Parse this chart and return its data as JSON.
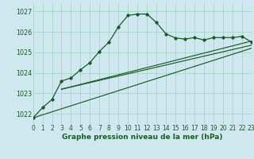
{
  "title": "Graphe pression niveau de la mer (hPa)",
  "background_color": "#cfe8ef",
  "grid_color": "#a8d5c8",
  "line_color": "#1a5c28",
  "xlim": [
    0,
    23
  ],
  "ylim": [
    1021.5,
    1027.4
  ],
  "yticks": [
    1022,
    1023,
    1024,
    1025,
    1026,
    1027
  ],
  "xticks": [
    0,
    1,
    2,
    3,
    4,
    5,
    6,
    7,
    8,
    9,
    10,
    11,
    12,
    13,
    14,
    15,
    16,
    17,
    18,
    19,
    20,
    21,
    22,
    23
  ],
  "main_series": [
    [
      0,
      1021.8
    ],
    [
      1,
      1022.3
    ],
    [
      2,
      1022.7
    ],
    [
      3,
      1023.6
    ],
    [
      4,
      1023.75
    ],
    [
      5,
      1024.15
    ],
    [
      6,
      1024.5
    ],
    [
      7,
      1025.05
    ],
    [
      8,
      1025.5
    ],
    [
      9,
      1026.25
    ],
    [
      10,
      1026.8
    ],
    [
      11,
      1026.87
    ],
    [
      12,
      1026.87
    ],
    [
      13,
      1026.45
    ],
    [
      14,
      1025.9
    ],
    [
      15,
      1025.7
    ],
    [
      16,
      1025.65
    ],
    [
      17,
      1025.72
    ],
    [
      18,
      1025.6
    ],
    [
      19,
      1025.72
    ],
    [
      20,
      1025.72
    ],
    [
      21,
      1025.72
    ],
    [
      22,
      1025.78
    ],
    [
      23,
      1025.5
    ]
  ],
  "line1": [
    [
      0,
      1021.8
    ],
    [
      23,
      1025.2
    ]
  ],
  "line2": [
    [
      3,
      1023.2
    ],
    [
      23,
      1025.35
    ]
  ],
  "line3": [
    [
      3,
      1023.2
    ],
    [
      23,
      1025.55
    ]
  ],
  "tick_fontsize": 5.5,
  "label_fontsize": 6.5
}
